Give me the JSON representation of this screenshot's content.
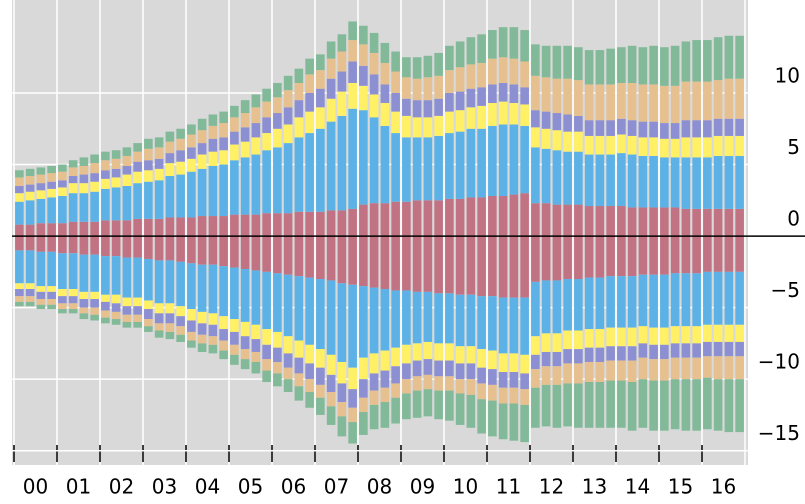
{
  "chart_data": {
    "type": "bar",
    "stacked": true,
    "categories": [
      "00",
      null,
      null,
      null,
      "01",
      null,
      null,
      null,
      "02",
      null,
      null,
      null,
      "03",
      null,
      null,
      null,
      "04",
      null,
      null,
      null,
      "05",
      null,
      null,
      null,
      "06",
      null,
      null,
      null,
      "07",
      null,
      null,
      null,
      "08",
      null,
      null,
      null,
      "09",
      null,
      null,
      null,
      "10",
      null,
      null,
      null,
      "11",
      null,
      null,
      null,
      "12",
      null,
      null,
      null,
      "13",
      null,
      null,
      null,
      "14",
      null,
      null,
      null,
      "15",
      null,
      null,
      null,
      "16",
      null,
      null,
      null
    ],
    "ylim": [
      -16,
      16.5
    ],
    "yticks": [
      {
        "value": -15,
        "label": "−15"
      },
      {
        "value": -10,
        "label": "−10"
      },
      {
        "value": -5,
        "label": "−5"
      },
      0,
      5,
      10
    ],
    "grid": true,
    "series": [
      {
        "color": "#c27383",
        "values": [
          0.8,
          0.8,
          0.9,
          0.9,
          0.9,
          1.0,
          1.0,
          1.0,
          1.1,
          1.1,
          1.1,
          1.2,
          1.2,
          1.2,
          1.3,
          1.3,
          1.3,
          1.4,
          1.4,
          1.4,
          1.5,
          1.5,
          1.5,
          1.6,
          1.6,
          1.6,
          1.7,
          1.7,
          1.7,
          1.8,
          1.8,
          1.9,
          2.2,
          2.3,
          2.3,
          2.4,
          2.4,
          2.5,
          2.5,
          2.5,
          2.6,
          2.6,
          2.7,
          2.7,
          2.8,
          2.8,
          2.9,
          3.0,
          2.3,
          2.3,
          2.2,
          2.2,
          2.2,
          2.1,
          2.1,
          2.1,
          2.1,
          2.0,
          2.0,
          2.0,
          2.0,
          2.0,
          1.9,
          1.9,
          1.9,
          1.9,
          1.9,
          1.9
        ]
      },
      {
        "color": "#5cb2e6",
        "values": [
          1.6,
          1.7,
          1.7,
          1.8,
          1.9,
          2.0,
          2.0,
          2.1,
          2.2,
          2.3,
          2.4,
          2.5,
          2.6,
          2.7,
          2.9,
          3.0,
          3.2,
          3.3,
          3.5,
          3.6,
          3.8,
          4.0,
          4.2,
          4.4,
          4.6,
          4.9,
          5.2,
          5.5,
          5.8,
          6.2,
          6.6,
          7.0,
          6.6,
          6.0,
          5.4,
          4.8,
          4.5,
          4.4,
          4.4,
          4.5,
          4.6,
          4.7,
          4.8,
          4.8,
          4.9,
          5.0,
          4.9,
          4.7,
          3.9,
          3.8,
          3.8,
          3.7,
          3.7,
          3.6,
          3.6,
          3.6,
          3.7,
          3.7,
          3.6,
          3.6,
          3.5,
          3.5,
          3.6,
          3.6,
          3.6,
          3.7,
          3.7,
          3.7
        ]
      },
      {
        "color": "#fff066",
        "values": [
          0.6,
          0.6,
          0.6,
          0.6,
          0.6,
          0.7,
          0.7,
          0.7,
          0.7,
          0.7,
          0.8,
          0.8,
          0.8,
          0.8,
          0.9,
          0.9,
          0.9,
          1.0,
          1.0,
          1.0,
          1.1,
          1.1,
          1.2,
          1.2,
          1.3,
          1.3,
          1.4,
          1.5,
          1.5,
          1.6,
          1.7,
          1.8,
          1.7,
          1.6,
          1.6,
          1.5,
          1.5,
          1.4,
          1.4,
          1.4,
          1.5,
          1.5,
          1.5,
          1.6,
          1.6,
          1.6,
          1.5,
          1.5,
          1.4,
          1.4,
          1.4,
          1.4,
          1.4,
          1.3,
          1.3,
          1.3,
          1.3,
          1.3,
          1.3,
          1.3,
          1.3,
          1.3,
          1.4,
          1.4,
          1.4,
          1.4,
          1.4,
          1.4
        ]
      },
      {
        "color": "#8c8fd2",
        "values": [
          0.5,
          0.5,
          0.5,
          0.5,
          0.5,
          0.5,
          0.6,
          0.6,
          0.6,
          0.6,
          0.6,
          0.7,
          0.7,
          0.7,
          0.7,
          0.8,
          0.8,
          0.8,
          0.9,
          0.9,
          0.9,
          1.0,
          1.0,
          1.1,
          1.1,
          1.2,
          1.2,
          1.3,
          1.3,
          1.4,
          1.4,
          1.5,
          1.4,
          1.4,
          1.3,
          1.3,
          1.2,
          1.2,
          1.2,
          1.2,
          1.3,
          1.3,
          1.3,
          1.3,
          1.3,
          1.3,
          1.3,
          1.2,
          1.2,
          1.2,
          1.2,
          1.2,
          1.1,
          1.1,
          1.1,
          1.1,
          1.1,
          1.1,
          1.1,
          1.1,
          1.1,
          1.1,
          1.2,
          1.2,
          1.2,
          1.2,
          1.2,
          1.2
        ]
      },
      {
        "color": "#e6c08e",
        "values": [
          0.6,
          0.6,
          0.6,
          0.6,
          0.6,
          0.6,
          0.6,
          0.7,
          0.7,
          0.7,
          0.7,
          0.7,
          0.8,
          0.8,
          0.8,
          0.8,
          0.9,
          0.9,
          0.9,
          1.0,
          1.0,
          1.0,
          1.1,
          1.1,
          1.1,
          1.2,
          1.2,
          1.3,
          1.3,
          1.4,
          1.4,
          1.5,
          1.5,
          1.5,
          1.5,
          1.5,
          1.5,
          1.5,
          1.6,
          1.6,
          1.6,
          1.7,
          1.7,
          1.7,
          1.8,
          1.8,
          1.8,
          1.8,
          2.4,
          2.4,
          2.4,
          2.5,
          2.5,
          2.5,
          2.5,
          2.5,
          2.5,
          2.6,
          2.6,
          2.6,
          2.6,
          2.6,
          2.7,
          2.7,
          2.7,
          2.7,
          2.8,
          2.8
        ]
      },
      {
        "color": "#82b999",
        "values": [
          0.5,
          0.5,
          0.5,
          0.5,
          0.5,
          0.5,
          0.6,
          0.6,
          0.6,
          0.6,
          0.6,
          0.6,
          0.7,
          0.7,
          0.7,
          0.7,
          0.7,
          0.8,
          0.8,
          0.8,
          0.8,
          0.9,
          0.9,
          0.9,
          1.0,
          1.0,
          1.0,
          1.1,
          1.1,
          1.2,
          1.2,
          1.3,
          1.3,
          1.4,
          1.4,
          1.4,
          1.4,
          1.5,
          1.5,
          1.6,
          1.7,
          1.8,
          1.9,
          2.0,
          2.0,
          2.1,
          2.2,
          2.2,
          2.2,
          2.2,
          2.3,
          2.3,
          2.3,
          2.4,
          2.4,
          2.5,
          2.5,
          2.6,
          2.6,
          2.7,
          2.7,
          2.8,
          2.8,
          2.9,
          2.9,
          3.0,
          3.0,
          3.0
        ]
      },
      {
        "color": "#c27383",
        "values": [
          -1.0,
          -1.0,
          -1.1,
          -1.1,
          -1.2,
          -1.2,
          -1.3,
          -1.3,
          -1.4,
          -1.4,
          -1.5,
          -1.5,
          -1.6,
          -1.7,
          -1.7,
          -1.8,
          -1.9,
          -2.0,
          -2.0,
          -2.1,
          -2.2,
          -2.3,
          -2.4,
          -2.5,
          -2.6,
          -2.7,
          -2.8,
          -2.9,
          -3.0,
          -3.1,
          -3.3,
          -3.4,
          -3.5,
          -3.6,
          -3.7,
          -3.8,
          -3.8,
          -3.9,
          -3.9,
          -4.0,
          -4.0,
          -4.1,
          -4.1,
          -4.2,
          -4.2,
          -4.3,
          -4.3,
          -4.3,
          -3.2,
          -3.1,
          -3.1,
          -3.0,
          -3.0,
          -2.9,
          -2.9,
          -2.8,
          -2.8,
          -2.8,
          -2.7,
          -2.7,
          -2.7,
          -2.6,
          -2.6,
          -2.6,
          -2.5,
          -2.5,
          -2.5,
          -2.5
        ]
      },
      {
        "color": "#5cb2e6",
        "values": [
          -2.3,
          -2.3,
          -2.4,
          -2.4,
          -2.5,
          -2.5,
          -2.6,
          -2.6,
          -2.7,
          -2.7,
          -2.8,
          -2.8,
          -2.9,
          -3.0,
          -3.0,
          -3.1,
          -3.2,
          -3.3,
          -3.4,
          -3.5,
          -3.6,
          -3.7,
          -3.8,
          -4.0,
          -4.1,
          -4.3,
          -4.5,
          -4.7,
          -4.9,
          -5.2,
          -5.5,
          -5.8,
          -5.0,
          -4.6,
          -4.3,
          -4.0,
          -3.8,
          -3.6,
          -3.5,
          -3.5,
          -3.5,
          -3.6,
          -3.6,
          -3.7,
          -3.8,
          -3.9,
          -3.9,
          -4.0,
          -3.8,
          -3.7,
          -3.7,
          -3.6,
          -3.6,
          -3.6,
          -3.6,
          -3.6,
          -3.6,
          -3.6,
          -3.6,
          -3.7,
          -3.7,
          -3.7,
          -3.7,
          -3.7,
          -3.7,
          -3.7,
          -3.7,
          -3.7
        ]
      },
      {
        "color": "#fff066",
        "values": [
          -0.4,
          -0.4,
          -0.4,
          -0.4,
          -0.5,
          -0.5,
          -0.5,
          -0.5,
          -0.5,
          -0.6,
          -0.6,
          -0.6,
          -0.6,
          -0.7,
          -0.7,
          -0.7,
          -0.8,
          -0.8,
          -0.8,
          -0.9,
          -0.9,
          -1.0,
          -1.0,
          -1.1,
          -1.1,
          -1.2,
          -1.2,
          -1.3,
          -1.3,
          -1.4,
          -1.5,
          -1.5,
          -1.5,
          -1.4,
          -1.4,
          -1.3,
          -1.3,
          -1.2,
          -1.2,
          -1.2,
          -1.2,
          -1.2,
          -1.2,
          -1.3,
          -1.3,
          -1.3,
          -1.3,
          -1.3,
          -1.3,
          -1.3,
          -1.3,
          -1.3,
          -1.3,
          -1.3,
          -1.3,
          -1.3,
          -1.3,
          -1.3,
          -1.2,
          -1.2,
          -1.2,
          -1.2,
          -1.2,
          -1.2,
          -1.2,
          -1.2,
          -1.2,
          -1.2
        ]
      },
      {
        "color": "#8c8fd2",
        "values": [
          -0.5,
          -0.5,
          -0.5,
          -0.5,
          -0.5,
          -0.5,
          -0.6,
          -0.6,
          -0.6,
          -0.6,
          -0.6,
          -0.6,
          -0.7,
          -0.7,
          -0.7,
          -0.7,
          -0.8,
          -0.8,
          -0.8,
          -0.8,
          -0.9,
          -0.9,
          -0.9,
          -1.0,
          -1.0,
          -1.0,
          -1.1,
          -1.1,
          -1.2,
          -1.2,
          -1.3,
          -1.3,
          -1.3,
          -1.2,
          -1.2,
          -1.2,
          -1.1,
          -1.1,
          -1.1,
          -1.1,
          -1.1,
          -1.1,
          -1.1,
          -1.1,
          -1.1,
          -1.1,
          -1.1,
          -1.1,
          -1.0,
          -1.0,
          -1.0,
          -1.0,
          -1.0,
          -1.0,
          -1.0,
          -1.0,
          -1.0,
          -1.0,
          -1.0,
          -1.0,
          -1.0,
          -1.0,
          -1.0,
          -1.0,
          -1.0,
          -1.0,
          -1.0,
          -1.0
        ]
      },
      {
        "color": "#e6c08e",
        "values": [
          -0.4,
          -0.4,
          -0.4,
          -0.4,
          -0.4,
          -0.4,
          -0.4,
          -0.5,
          -0.5,
          -0.5,
          -0.5,
          -0.5,
          -0.5,
          -0.5,
          -0.6,
          -0.6,
          -0.6,
          -0.6,
          -0.6,
          -0.7,
          -0.7,
          -0.7,
          -0.7,
          -0.8,
          -0.8,
          -0.8,
          -0.9,
          -0.9,
          -0.9,
          -1.0,
          -1.0,
          -1.0,
          -1.0,
          -1.0,
          -1.0,
          -1.0,
          -1.0,
          -1.0,
          -1.0,
          -1.0,
          -1.0,
          -1.0,
          -1.1,
          -1.1,
          -1.1,
          -1.1,
          -1.1,
          -1.1,
          -1.3,
          -1.3,
          -1.3,
          -1.4,
          -1.4,
          -1.4,
          -1.4,
          -1.4,
          -1.4,
          -1.5,
          -1.5,
          -1.5,
          -1.5,
          -1.5,
          -1.5,
          -1.5,
          -1.5,
          -1.6,
          -1.6,
          -1.6
        ]
      },
      {
        "color": "#82b999",
        "values": [
          -0.3,
          -0.3,
          -0.3,
          -0.3,
          -0.3,
          -0.3,
          -0.4,
          -0.4,
          -0.4,
          -0.4,
          -0.4,
          -0.4,
          -0.4,
          -0.5,
          -0.5,
          -0.5,
          -0.5,
          -0.6,
          -0.6,
          -0.6,
          -0.7,
          -0.7,
          -0.8,
          -0.8,
          -0.9,
          -0.9,
          -1.0,
          -1.1,
          -1.2,
          -1.3,
          -1.4,
          -1.5,
          -1.6,
          -1.7,
          -1.8,
          -1.8,
          -1.8,
          -1.9,
          -1.9,
          -2.0,
          -2.1,
          -2.2,
          -2.3,
          -2.4,
          -2.5,
          -2.5,
          -2.6,
          -2.6,
          -2.8,
          -2.9,
          -3.0,
          -3.0,
          -3.1,
          -3.2,
          -3.2,
          -3.3,
          -3.3,
          -3.4,
          -3.4,
          -3.5,
          -3.5,
          -3.5,
          -3.6,
          -3.6,
          -3.6,
          -3.6,
          -3.7,
          -3.7
        ]
      }
    ]
  }
}
